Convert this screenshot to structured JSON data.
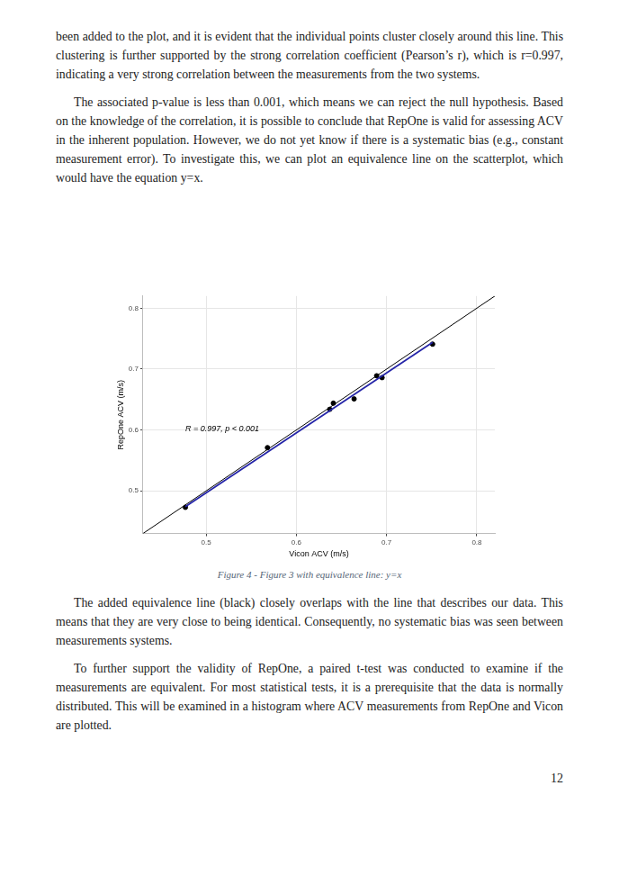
{
  "continued_paragraph": "been added to the plot, and it is evident that the individual points cluster closely around this line. This clustering is further supported by the strong correlation coefficient (Pearson’s r), which is r=0.997, indicating a very strong correlation between the measurements from the two systems.",
  "paragraphs_before": [
    "The associated p-value is less than 0.001, which means we can reject the null hypothesis. Based on the knowledge of the correlation, it is possible to conclude that RepOne is valid for assessing ACV in the inherent population. However, we do not yet know if there is a systematic bias (e.g., constant measurement error). To investigate this, we can plot an equivalence line on the scatterplot, which would have the equation y=x."
  ],
  "chart_data": {
    "type": "scatter",
    "xlabel": "Vicon ACV (m/s)",
    "ylabel": "RepOne ACV (m/s)",
    "xlim": [
      0.43,
      0.82
    ],
    "ylim": [
      0.43,
      0.82
    ],
    "xticks": [
      0.5,
      0.6,
      0.7,
      0.8
    ],
    "yticks": [
      0.5,
      0.6,
      0.7,
      0.8
    ],
    "grid": true,
    "series": [
      {
        "type": "line",
        "color": "#000000",
        "line_style": "solid",
        "x": [
          0.43,
          0.82
        ],
        "values": [
          0.43,
          0.82
        ]
      },
      {
        "type": "line",
        "color": "#2424a8",
        "line_style": "solid",
        "x": [
          0.477,
          0.751
        ],
        "values": [
          0.474,
          0.744
        ]
      },
      {
        "type": "scatter",
        "color": "#000000",
        "marker": "circle",
        "x": [
          0.477,
          0.568,
          0.637,
          0.641,
          0.664,
          0.689,
          0.695,
          0.751
        ],
        "values": [
          0.473,
          0.571,
          0.634,
          0.644,
          0.651,
          0.689,
          0.686,
          0.741
        ]
      }
    ],
    "annotations": [
      {
        "text": "R = 0.997, p < 0.001",
        "x": 0.477,
        "y": 0.601
      }
    ]
  },
  "caption": "Figure 4 - Figure 3 with equivalence line: y=x",
  "paragraphs_after": [
    "The added equivalence line (black) closely overlaps with the line that describes our data. This means that they are very close to being identical. Consequently, no systematic bias was seen between measurements systems.",
    "To further support the validity of RepOne, a paired t-test was conducted to examine if the measurements are equivalent. For most statistical tests, it is a prerequisite that the data is normally distributed. This will be examined in a histogram where ACV measurements from RepOne and Vicon are plotted."
  ],
  "page_number": 12
}
